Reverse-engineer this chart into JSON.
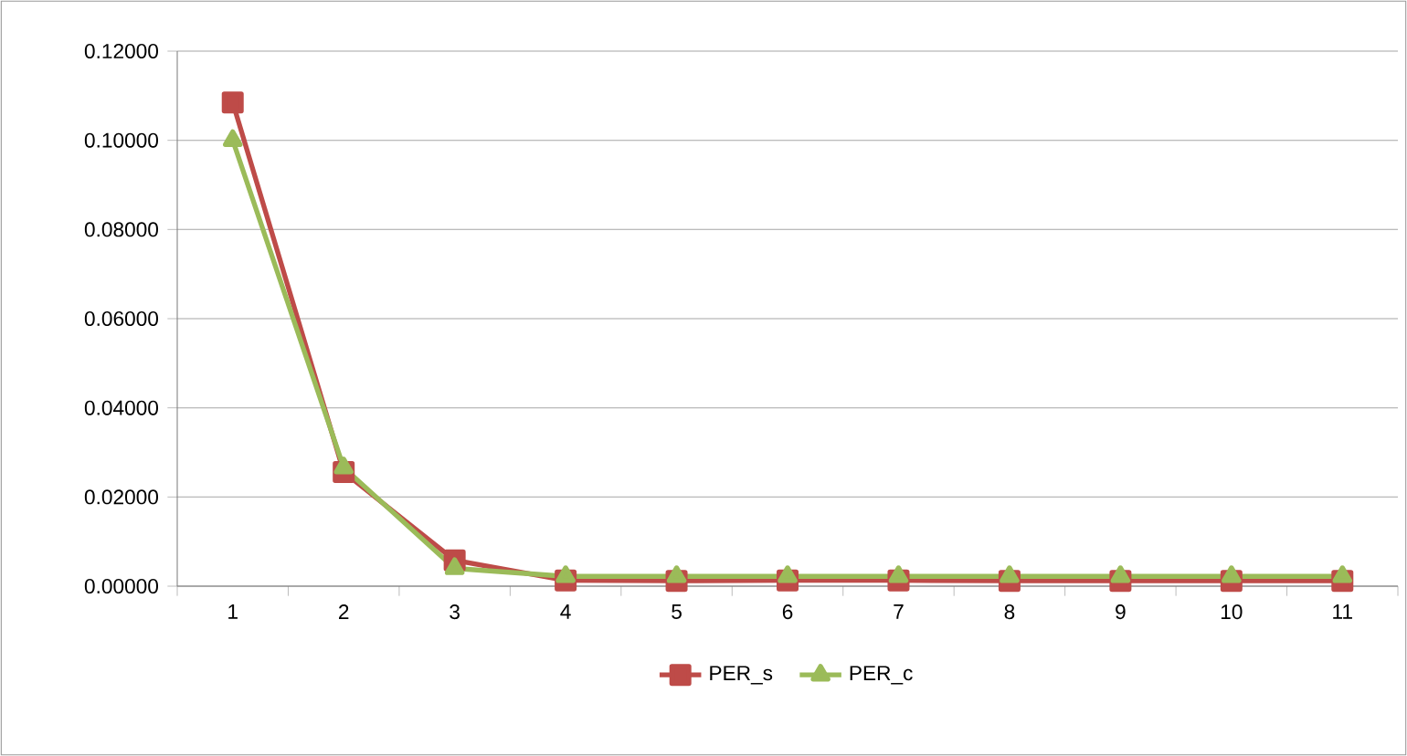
{
  "chart_data": {
    "type": "line",
    "categories": [
      "1",
      "2",
      "3",
      "4",
      "5",
      "6",
      "7",
      "8",
      "9",
      "10",
      "11"
    ],
    "series": [
      {
        "name": "PER_s",
        "color": "#be4b48",
        "marker": "square",
        "values": [
          0.1085,
          0.0256,
          0.0058,
          0.0013,
          0.0012,
          0.0013,
          0.0013,
          0.0012,
          0.0012,
          0.0012,
          0.0012
        ]
      },
      {
        "name": "PER_c",
        "color": "#9bbb59",
        "marker": "triangle",
        "values": [
          0.1,
          0.0266,
          0.004,
          0.0022,
          0.0022,
          0.0022,
          0.0022,
          0.0022,
          0.0022,
          0.0022,
          0.0022
        ]
      }
    ],
    "ylim": [
      0,
      0.12
    ],
    "yticks": [
      {
        "value": 0,
        "label": "0.00000"
      },
      {
        "value": 0.02,
        "label": "0.02000"
      },
      {
        "value": 0.04,
        "label": "0.04000"
      },
      {
        "value": 0.06,
        "label": "0.06000"
      },
      {
        "value": 0.08,
        "label": "0.08000"
      },
      {
        "value": 0.1,
        "label": "0.10000"
      },
      {
        "value": 0.12,
        "label": "0.12000"
      }
    ],
    "grid": "y",
    "legend": "bottom",
    "line_style": "solid"
  }
}
